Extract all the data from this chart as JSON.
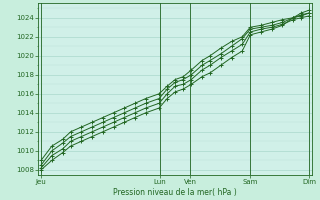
{
  "title": "",
  "xlabel": "Pression niveau de la mer( hPa )",
  "ylabel": "",
  "bg_color": "#c8eedd",
  "plot_bg_color": "#d0f0e8",
  "grid_major_color": "#aad8cc",
  "grid_minor_color": "#bbddd6",
  "line_color": "#226622",
  "ylim": [
    1007.5,
    1025.5
  ],
  "yticks": [
    1008,
    1010,
    1012,
    1014,
    1016,
    1018,
    1020,
    1022,
    1024
  ],
  "xtick_labels": [
    "Jeu",
    "Lun",
    "Ven",
    "Sam",
    "Dim"
  ],
  "xtick_positions": [
    0.0,
    0.444,
    0.556,
    0.778,
    1.0
  ],
  "vline_positions": [
    0.0,
    0.444,
    0.556,
    0.778,
    1.0
  ],
  "lines_x": [
    [
      0.0,
      0.04,
      0.08,
      0.11,
      0.15,
      0.19,
      0.23,
      0.27,
      0.31,
      0.35,
      0.39,
      0.44,
      0.47,
      0.5,
      0.53,
      0.56,
      0.6,
      0.63,
      0.67,
      0.71,
      0.75,
      0.78,
      0.82,
      0.86,
      0.9,
      0.94,
      0.97,
      1.0
    ],
    [
      0.0,
      0.04,
      0.08,
      0.11,
      0.15,
      0.19,
      0.23,
      0.27,
      0.31,
      0.35,
      0.39,
      0.44,
      0.47,
      0.5,
      0.53,
      0.56,
      0.6,
      0.63,
      0.67,
      0.71,
      0.75,
      0.78,
      0.82,
      0.86,
      0.9,
      0.94,
      0.97,
      1.0
    ],
    [
      0.0,
      0.04,
      0.08,
      0.11,
      0.15,
      0.19,
      0.23,
      0.27,
      0.31,
      0.35,
      0.39,
      0.44,
      0.47,
      0.5,
      0.53,
      0.56,
      0.6,
      0.63,
      0.67,
      0.71,
      0.75,
      0.78,
      0.82,
      0.86,
      0.9,
      0.94,
      0.97,
      1.0
    ],
    [
      0.0,
      0.04,
      0.08,
      0.11,
      0.15,
      0.19,
      0.23,
      0.27,
      0.31,
      0.35,
      0.39,
      0.44,
      0.47,
      0.5,
      0.53,
      0.56,
      0.6,
      0.63,
      0.67,
      0.71,
      0.75,
      0.78,
      0.82,
      0.86,
      0.9,
      0.94,
      0.97,
      1.0
    ]
  ],
  "lines_y": [
    [
      1008.0,
      1009.0,
      1009.8,
      1010.5,
      1011.0,
      1011.5,
      1012.0,
      1012.5,
      1013.0,
      1013.5,
      1014.0,
      1014.5,
      1015.5,
      1016.2,
      1016.5,
      1017.0,
      1017.8,
      1018.2,
      1019.0,
      1019.8,
      1020.5,
      1022.2,
      1022.5,
      1022.8,
      1023.2,
      1024.0,
      1024.5,
      1024.8
    ],
    [
      1008.2,
      1009.5,
      1010.2,
      1011.0,
      1011.5,
      1012.0,
      1012.5,
      1013.0,
      1013.5,
      1014.0,
      1014.5,
      1015.0,
      1016.0,
      1016.8,
      1017.0,
      1017.5,
      1018.5,
      1019.0,
      1019.8,
      1020.5,
      1021.2,
      1022.5,
      1022.8,
      1023.0,
      1023.3,
      1023.8,
      1024.0,
      1024.2
    ],
    [
      1008.5,
      1010.0,
      1010.8,
      1011.5,
      1012.0,
      1012.5,
      1013.0,
      1013.5,
      1014.0,
      1014.5,
      1015.0,
      1015.5,
      1016.5,
      1017.2,
      1017.5,
      1018.0,
      1019.0,
      1019.5,
      1020.2,
      1021.0,
      1021.8,
      1022.8,
      1023.0,
      1023.2,
      1023.5,
      1024.0,
      1024.2,
      1024.5
    ],
    [
      1009.0,
      1010.5,
      1011.2,
      1012.0,
      1012.5,
      1013.0,
      1013.5,
      1014.0,
      1014.5,
      1015.0,
      1015.5,
      1016.0,
      1016.8,
      1017.5,
      1017.8,
      1018.5,
      1019.5,
      1020.0,
      1020.8,
      1021.5,
      1022.0,
      1023.0,
      1023.2,
      1023.5,
      1023.8,
      1024.0,
      1024.3,
      1024.5
    ]
  ]
}
